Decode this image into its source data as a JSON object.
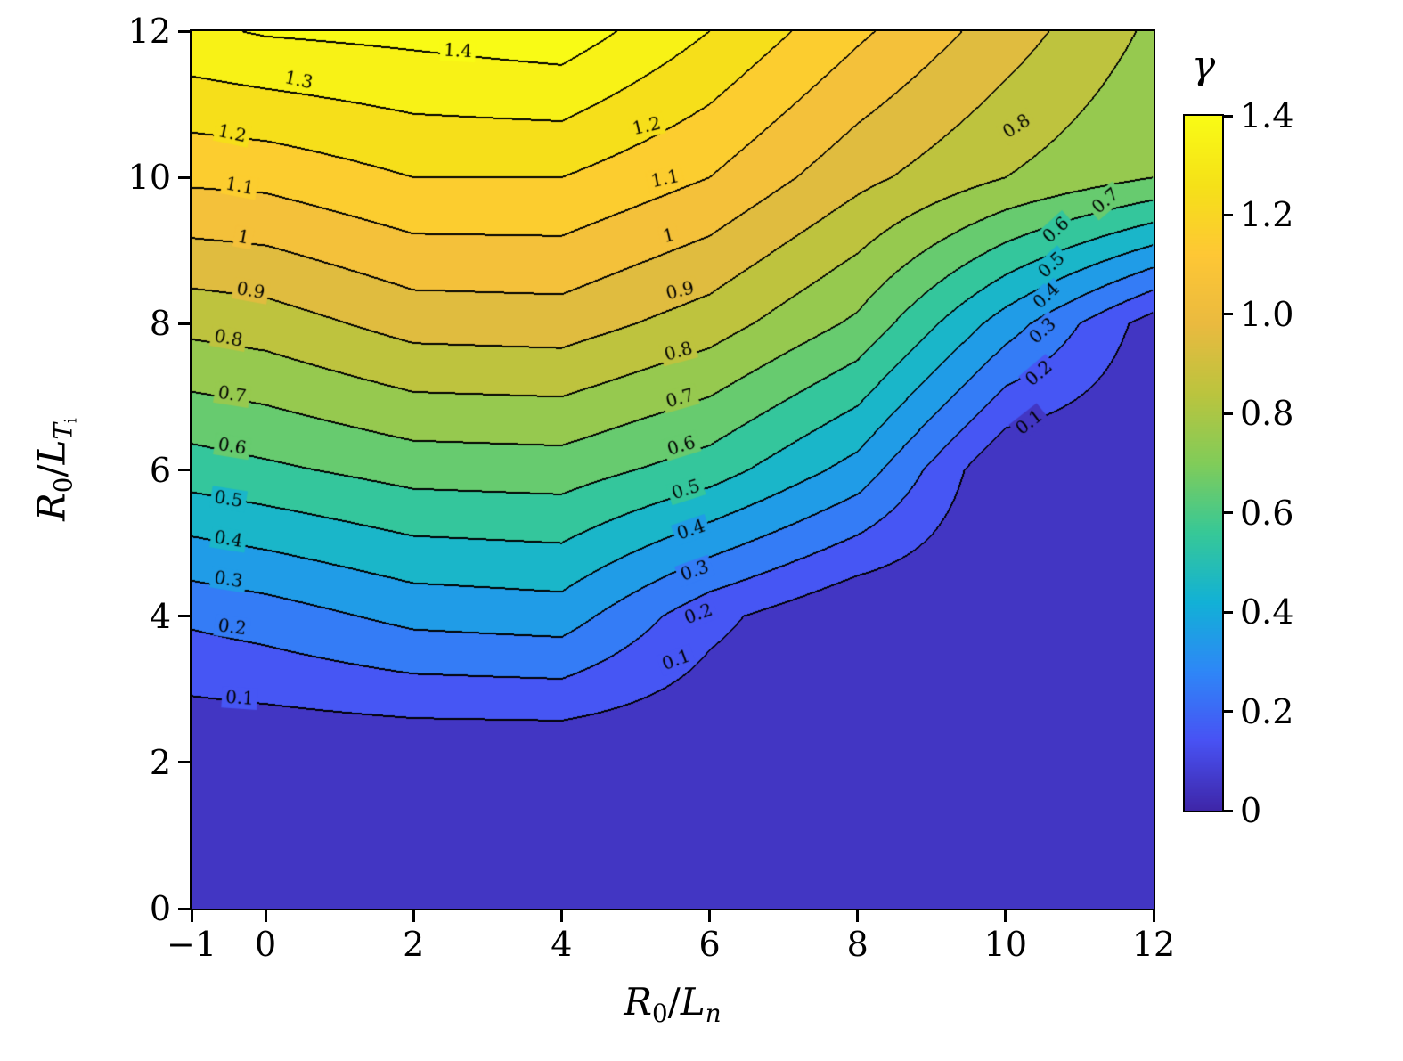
{
  "figure": {
    "background": "#ffffff",
    "xlabel": {
      "p1": "R",
      "s1": "0",
      "p2": "/",
      "p3": "L",
      "s2": "n"
    },
    "ylabel": {
      "p1": "R",
      "s1": "0",
      "p2": "/",
      "p3": "L",
      "s2": "T",
      "s3": "i"
    },
    "colorbar_title": "γ"
  },
  "chart_data": {
    "type": "heatmap",
    "subtype": "filled_contour",
    "title": "",
    "xlabel": "R0/Ln",
    "ylabel": "R0/LTi",
    "colorbar_label": "gamma",
    "xlim": [
      -1,
      12
    ],
    "ylim": [
      0,
      12
    ],
    "x": [
      -1,
      0,
      2,
      4,
      6,
      8,
      10,
      12
    ],
    "y": [
      0,
      2,
      4,
      6,
      8,
      10,
      12
    ],
    "z": [
      [
        0.0,
        0.0,
        0.0,
        0.0,
        0.0,
        0.0,
        0.0,
        0.0
      ],
      [
        0.0,
        0.0,
        0.0,
        0.0,
        0.0,
        0.0,
        0.0,
        0.0
      ],
      [
        0.22,
        0.25,
        0.33,
        0.35,
        0.13,
        0.0,
        0.0,
        0.0
      ],
      [
        0.55,
        0.58,
        0.64,
        0.65,
        0.55,
        0.36,
        0.0,
        0.0
      ],
      [
        0.83,
        0.85,
        0.94,
        0.95,
        0.85,
        0.68,
        0.35,
        0.05
      ],
      [
        1.12,
        1.13,
        1.2,
        1.2,
        1.1,
        0.93,
        0.8,
        0.7
      ],
      [
        1.38,
        1.41,
        1.43,
        1.46,
        1.3,
        1.12,
        0.95,
        0.78
      ]
    ],
    "level_step": 0.1,
    "vmax": 1.4,
    "n_bands": 15,
    "grid": false,
    "line_color": "#000000",
    "colormap": {
      "name": "parula",
      "colors": [
        "#3e26a8",
        "#4852f4",
        "#2e87f7",
        "#12b1d6",
        "#37c897",
        "#81cc59",
        "#bbc43e",
        "#eaba3f",
        "#fec735",
        "#f5e118",
        "#f9fb15"
      ]
    },
    "x_ticks": {
      "values": [
        -1,
        0,
        2,
        4,
        6,
        8,
        10,
        12
      ],
      "labels": [
        "−1",
        "0",
        "2",
        "4",
        "6",
        "8",
        "10",
        "12"
      ]
    },
    "y_ticks": {
      "values": [
        0,
        2,
        4,
        6,
        8,
        10,
        12
      ],
      "labels": [
        "0",
        "2",
        "4",
        "6",
        "8",
        "10",
        "12"
      ]
    },
    "colorbar_ticks": {
      "values": [
        0,
        0.2,
        0.4,
        0.6,
        0.8,
        1.0,
        1.2,
        1.4
      ],
      "labels": [
        "0",
        "0.2",
        "0.4",
        "0.6",
        "0.8",
        "1.0",
        "1.2",
        "1.4"
      ]
    },
    "contour_labels": [
      {
        "v": "0.1",
        "x": -0.35,
        "y": 2.88,
        "rot": 4
      },
      {
        "v": "0.2",
        "x": -0.45,
        "y": 3.85,
        "rot": 8
      },
      {
        "v": "0.3",
        "x": -0.5,
        "y": 4.5,
        "rot": 9
      },
      {
        "v": "0.4",
        "x": -0.5,
        "y": 5.05,
        "rot": 9
      },
      {
        "v": "0.5",
        "x": -0.5,
        "y": 5.6,
        "rot": 9
      },
      {
        "v": "0.6",
        "x": -0.45,
        "y": 6.32,
        "rot": 9
      },
      {
        "v": "0.7",
        "x": -0.45,
        "y": 7.03,
        "rot": 9
      },
      {
        "v": "0.8",
        "x": -0.5,
        "y": 7.8,
        "rot": 10
      },
      {
        "v": "0.9",
        "x": -0.2,
        "y": 8.45,
        "rot": 10
      },
      {
        "v": "1",
        "x": -0.3,
        "y": 9.18,
        "rot": 11
      },
      {
        "v": "1.1",
        "x": -0.35,
        "y": 9.88,
        "rot": 11
      },
      {
        "v": "1.2",
        "x": -0.45,
        "y": 10.6,
        "rot": 12
      },
      {
        "v": "1.3",
        "x": 0.45,
        "y": 11.33,
        "rot": 12
      },
      {
        "v": "1.4",
        "x": 2.6,
        "y": 11.73,
        "rot": 3
      },
      {
        "v": "0.1",
        "x": 5.55,
        "y": 3.4,
        "rot": -20
      },
      {
        "v": "0.2",
        "x": 5.85,
        "y": 4.03,
        "rot": -20
      },
      {
        "v": "0.3",
        "x": 5.8,
        "y": 4.62,
        "rot": -20
      },
      {
        "v": "0.4",
        "x": 5.75,
        "y": 5.18,
        "rot": -19
      },
      {
        "v": "0.5",
        "x": 5.68,
        "y": 5.73,
        "rot": -18
      },
      {
        "v": "0.6",
        "x": 5.62,
        "y": 6.33,
        "rot": -17
      },
      {
        "v": "0.7",
        "x": 5.6,
        "y": 6.98,
        "rot": -16
      },
      {
        "v": "0.8",
        "x": 5.58,
        "y": 7.62,
        "rot": -15
      },
      {
        "v": "0.9",
        "x": 5.6,
        "y": 8.45,
        "rot": -14
      },
      {
        "v": "1",
        "x": 5.45,
        "y": 9.2,
        "rot": -13
      },
      {
        "v": "1.1",
        "x": 5.4,
        "y": 9.98,
        "rot": -12
      },
      {
        "v": "1.2",
        "x": 5.15,
        "y": 10.7,
        "rot": -13
      },
      {
        "v": "0.1",
        "x": 10.32,
        "y": 6.65,
        "rot": -38
      },
      {
        "v": "0.2",
        "x": 10.45,
        "y": 7.32,
        "rot": -40
      },
      {
        "v": "0.3",
        "x": 10.5,
        "y": 7.9,
        "rot": -42
      },
      {
        "v": "0.4",
        "x": 10.55,
        "y": 8.38,
        "rot": -43
      },
      {
        "v": "0.5",
        "x": 10.62,
        "y": 8.8,
        "rot": -43
      },
      {
        "v": "0.6",
        "x": 10.68,
        "y": 9.28,
        "rot": -42
      },
      {
        "v": "0.7",
        "x": 11.35,
        "y": 9.68,
        "rot": -40
      },
      {
        "v": "0.8",
        "x": 10.15,
        "y": 10.7,
        "rot": -33
      }
    ]
  }
}
